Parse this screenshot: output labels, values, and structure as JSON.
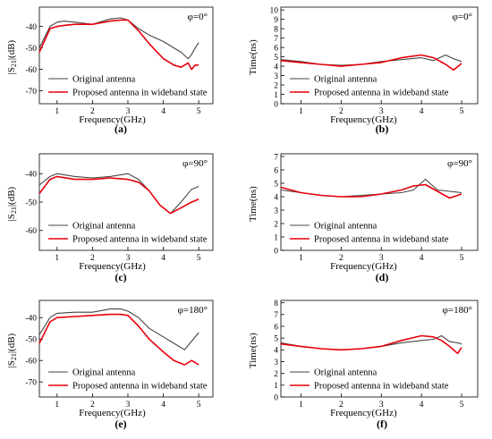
{
  "legend": {
    "original": "Original antenna",
    "proposed": "Proposed antenna in wideband state"
  },
  "colors": {
    "original": "#444444",
    "proposed": "#e8000b"
  },
  "charts": [
    {
      "id": "a",
      "panel_label": "(a)",
      "corner_text": "φ=0°",
      "xlabel": "Frequency(GHz)",
      "ylabel": "|S21|(dB)",
      "xlim": [
        0.5,
        5.4
      ],
      "ylim": [
        -76,
        -31
      ],
      "xticks": [
        1,
        2,
        3,
        4,
        5
      ],
      "yticks": [
        -40,
        -50,
        -60,
        -70
      ]
    },
    {
      "id": "b",
      "panel_label": "(b)",
      "corner_text": "φ=0°",
      "xlabel": "Frequency(GHz)",
      "ylabel": "Time(ns)",
      "xlim": [
        0.5,
        5.4
      ],
      "ylim": [
        0,
        10.3
      ],
      "xticks": [
        1,
        2,
        3,
        4,
        5
      ],
      "yticks": [
        0,
        1,
        2,
        3,
        4,
        5,
        6,
        7,
        8,
        9,
        10
      ]
    },
    {
      "id": "c",
      "panel_label": "(c)",
      "corner_text": "φ=90°",
      "xlabel": "Frequency(GHz)",
      "ylabel": "|S21|(dB)",
      "xlim": [
        0.5,
        5.4
      ],
      "ylim": [
        -67,
        -33
      ],
      "xticks": [
        1,
        2,
        3,
        4,
        5
      ],
      "yticks": [
        -40,
        -50,
        -60
      ]
    },
    {
      "id": "d",
      "panel_label": "(d)",
      "corner_text": "φ=90°",
      "xlabel": "Frequency(GHz)",
      "ylabel": "Time(ns)",
      "xlim": [
        0.5,
        5.4
      ],
      "ylim": [
        0,
        7.2
      ],
      "xticks": [
        1,
        2,
        3,
        4,
        5
      ],
      "yticks": [
        0,
        1,
        2,
        3,
        4,
        5,
        6,
        7
      ]
    },
    {
      "id": "e",
      "panel_label": "(e)",
      "corner_text": "φ=180°",
      "xlabel": "Frequency(GHz)",
      "ylabel": "|S21|(dB)",
      "xlim": [
        0.5,
        5.4
      ],
      "ylim": [
        -77,
        -32
      ],
      "xticks": [
        1,
        2,
        3,
        4,
        5
      ],
      "yticks": [
        -40,
        -50,
        -60,
        -70
      ]
    },
    {
      "id": "f",
      "panel_label": "(f)",
      "corner_text": "φ=180°",
      "xlabel": "Frequency(GHz)",
      "ylabel": "Time(ns)",
      "xlim": [
        0.5,
        5.4
      ],
      "ylim": [
        0,
        8.2
      ],
      "xticks": [
        1,
        2,
        3,
        4,
        5
      ],
      "yticks": [
        0,
        1,
        2,
        3,
        4,
        5,
        6,
        7,
        8
      ]
    }
  ],
  "chart_data": [
    {
      "type": "line",
      "id": "a",
      "x": [
        0.5,
        0.8,
        1.0,
        1.2,
        1.5,
        2.0,
        2.5,
        2.8,
        3.0,
        3.3,
        3.6,
        4.0,
        4.3,
        4.5,
        4.7,
        4.8,
        4.9,
        5.0
      ],
      "series": [
        {
          "name": "Original antenna",
          "values": [
            -50,
            -40,
            -38,
            -37.5,
            -38,
            -39,
            -36.5,
            -36,
            -37,
            -41,
            -44,
            -47,
            -50,
            -52,
            -55,
            -53,
            -50,
            -47.5
          ]
        },
        {
          "name": "Proposed antenna in wideband state",
          "values": [
            -52,
            -41,
            -40,
            -39.5,
            -39,
            -39,
            -37.5,
            -37,
            -37,
            -42,
            -48,
            -55,
            -58,
            -59,
            -57,
            -60,
            -58,
            -58
          ]
        }
      ]
    },
    {
      "type": "line",
      "id": "b",
      "x": [
        0.5,
        1.0,
        1.5,
        2.0,
        2.5,
        3.0,
        3.5,
        4.0,
        4.3,
        4.6,
        4.8,
        5.0
      ],
      "series": [
        {
          "name": "Original antenna",
          "values": [
            4.7,
            4.5,
            4.2,
            4.1,
            4.2,
            4.5,
            4.7,
            4.9,
            4.6,
            5.2,
            4.8,
            4.5
          ]
        },
        {
          "name": "Proposed antenna in wideband state",
          "values": [
            4.6,
            4.4,
            4.2,
            4.0,
            4.2,
            4.4,
            4.9,
            5.2,
            4.9,
            4.2,
            3.6,
            4.3
          ]
        }
      ]
    },
    {
      "type": "line",
      "id": "c",
      "x": [
        0.5,
        0.8,
        1.0,
        1.5,
        2.0,
        2.5,
        3.0,
        3.3,
        3.6,
        3.9,
        4.2,
        4.5,
        4.8,
        5.0
      ],
      "series": [
        {
          "name": "Original antenna",
          "values": [
            -44,
            -41,
            -40,
            -41,
            -41.5,
            -41,
            -40,
            -42,
            -46,
            -51,
            -54,
            -50,
            -45.5,
            -44.5
          ]
        },
        {
          "name": "Proposed antenna in wideband state",
          "values": [
            -47,
            -42,
            -41,
            -42,
            -42,
            -41.5,
            -42,
            -43,
            -46,
            -51,
            -54,
            -52,
            -50,
            -49
          ]
        }
      ]
    },
    {
      "type": "line",
      "id": "d",
      "x": [
        0.5,
        1.0,
        1.5,
        2.0,
        2.5,
        3.0,
        3.5,
        3.8,
        4.1,
        4.4,
        4.7,
        5.0
      ],
      "series": [
        {
          "name": "Original antenna",
          "values": [
            4.5,
            4.3,
            4.1,
            4.0,
            4.1,
            4.2,
            4.3,
            4.5,
            5.3,
            4.5,
            4.4,
            4.3
          ]
        },
        {
          "name": "Proposed antenna in wideband state",
          "values": [
            4.7,
            4.3,
            4.1,
            4.0,
            4.0,
            4.2,
            4.5,
            4.8,
            4.9,
            4.4,
            3.9,
            4.2
          ]
        }
      ]
    },
    {
      "type": "line",
      "id": "e",
      "x": [
        0.5,
        0.8,
        1.0,
        1.5,
        2.0,
        2.5,
        2.8,
        3.0,
        3.3,
        3.6,
        4.0,
        4.3,
        4.6,
        4.8,
        5.0
      ],
      "series": [
        {
          "name": "Original antenna",
          "values": [
            -48,
            -40,
            -38,
            -37.5,
            -37.5,
            -36,
            -36,
            -37,
            -40,
            -45,
            -49,
            -52,
            -55,
            -51,
            -47
          ]
        },
        {
          "name": "Proposed antenna in wideband state",
          "values": [
            -52,
            -42,
            -40,
            -39.5,
            -39,
            -38.5,
            -38.5,
            -39,
            -44,
            -50,
            -56,
            -60,
            -62,
            -60,
            -62
          ]
        }
      ]
    },
    {
      "type": "line",
      "id": "f",
      "x": [
        0.5,
        1.0,
        1.5,
        2.0,
        2.5,
        3.0,
        3.5,
        4.0,
        4.3,
        4.5,
        4.7,
        4.9,
        5.0
      ],
      "series": [
        {
          "name": "Original antenna",
          "values": [
            4.6,
            4.3,
            4.1,
            4.0,
            4.1,
            4.3,
            4.6,
            4.8,
            4.9,
            5.2,
            4.7,
            4.6,
            4.5
          ]
        },
        {
          "name": "Proposed antenna in wideband state",
          "values": [
            4.5,
            4.3,
            4.1,
            4.0,
            4.1,
            4.3,
            4.8,
            5.2,
            5.1,
            4.8,
            4.3,
            3.7,
            4.2
          ]
        }
      ]
    }
  ]
}
